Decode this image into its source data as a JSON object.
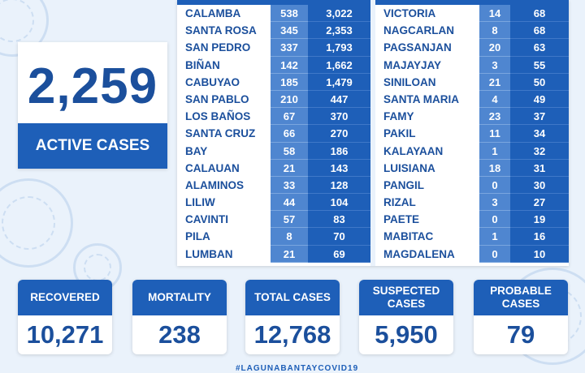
{
  "active": {
    "number": "2,259",
    "label": "ACTIVE CASES"
  },
  "table_left": [
    {
      "name": "CALAMBA",
      "v1": "538",
      "v2": "3,022"
    },
    {
      "name": "SANTA ROSA",
      "v1": "345",
      "v2": "2,353"
    },
    {
      "name": "SAN PEDRO",
      "v1": "337",
      "v2": "1,793"
    },
    {
      "name": "BIÑAN",
      "v1": "142",
      "v2": "1,662"
    },
    {
      "name": "CABUYAO",
      "v1": "185",
      "v2": "1,479"
    },
    {
      "name": "SAN PABLO",
      "v1": "210",
      "v2": "447"
    },
    {
      "name": "LOS BAÑOS",
      "v1": "67",
      "v2": "370"
    },
    {
      "name": "SANTA CRUZ",
      "v1": "66",
      "v2": "270"
    },
    {
      "name": "BAY",
      "v1": "58",
      "v2": "186"
    },
    {
      "name": "CALAUAN",
      "v1": "21",
      "v2": "143"
    },
    {
      "name": "ALAMINOS",
      "v1": "33",
      "v2": "128"
    },
    {
      "name": "LILIW",
      "v1": "44",
      "v2": "104"
    },
    {
      "name": "CAVINTI",
      "v1": "57",
      "v2": "83"
    },
    {
      "name": "PILA",
      "v1": "8",
      "v2": "70"
    },
    {
      "name": "LUMBAN",
      "v1": "21",
      "v2": "69"
    }
  ],
  "table_right": [
    {
      "name": "VICTORIA",
      "v1": "14",
      "v2": "68"
    },
    {
      "name": "NAGCARLAN",
      "v1": "8",
      "v2": "68"
    },
    {
      "name": "PAGSANJAN",
      "v1": "20",
      "v2": "63"
    },
    {
      "name": "MAJAYJAY",
      "v1": "3",
      "v2": "55"
    },
    {
      "name": "SINILOAN",
      "v1": "21",
      "v2": "50"
    },
    {
      "name": "SANTA MARIA",
      "v1": "4",
      "v2": "49"
    },
    {
      "name": "FAMY",
      "v1": "23",
      "v2": "37"
    },
    {
      "name": "PAKIL",
      "v1": "11",
      "v2": "34"
    },
    {
      "name": "KALAYAAN",
      "v1": "1",
      "v2": "32"
    },
    {
      "name": "LUISIANA",
      "v1": "18",
      "v2": "31"
    },
    {
      "name": "PANGIL",
      "v1": "0",
      "v2": "30"
    },
    {
      "name": "RIZAL",
      "v1": "3",
      "v2": "27"
    },
    {
      "name": "PAETE",
      "v1": "0",
      "v2": "19"
    },
    {
      "name": "MABITAC",
      "v1": "1",
      "v2": "16"
    },
    {
      "name": "MAGDALENA",
      "v1": "0",
      "v2": "10"
    }
  ],
  "stats": {
    "recovered": {
      "label": "RECOVERED",
      "value": "10,271"
    },
    "mortality": {
      "label": "MORTALITY",
      "value": "238"
    },
    "total": {
      "label": "TOTAL CASES",
      "value": "12,768"
    },
    "suspected": {
      "label": "SUSPECTED CASES",
      "value": "5,950"
    },
    "probable": {
      "label": "PROBABLE CASES",
      "value": "79"
    }
  },
  "hashtag": "#LAGUNABANTAYCOVID19",
  "colors": {
    "primary": "#1e5fb8",
    "light": "#4f86d0",
    "text": "#1b4f9c",
    "background": "#eaf2fb"
  }
}
